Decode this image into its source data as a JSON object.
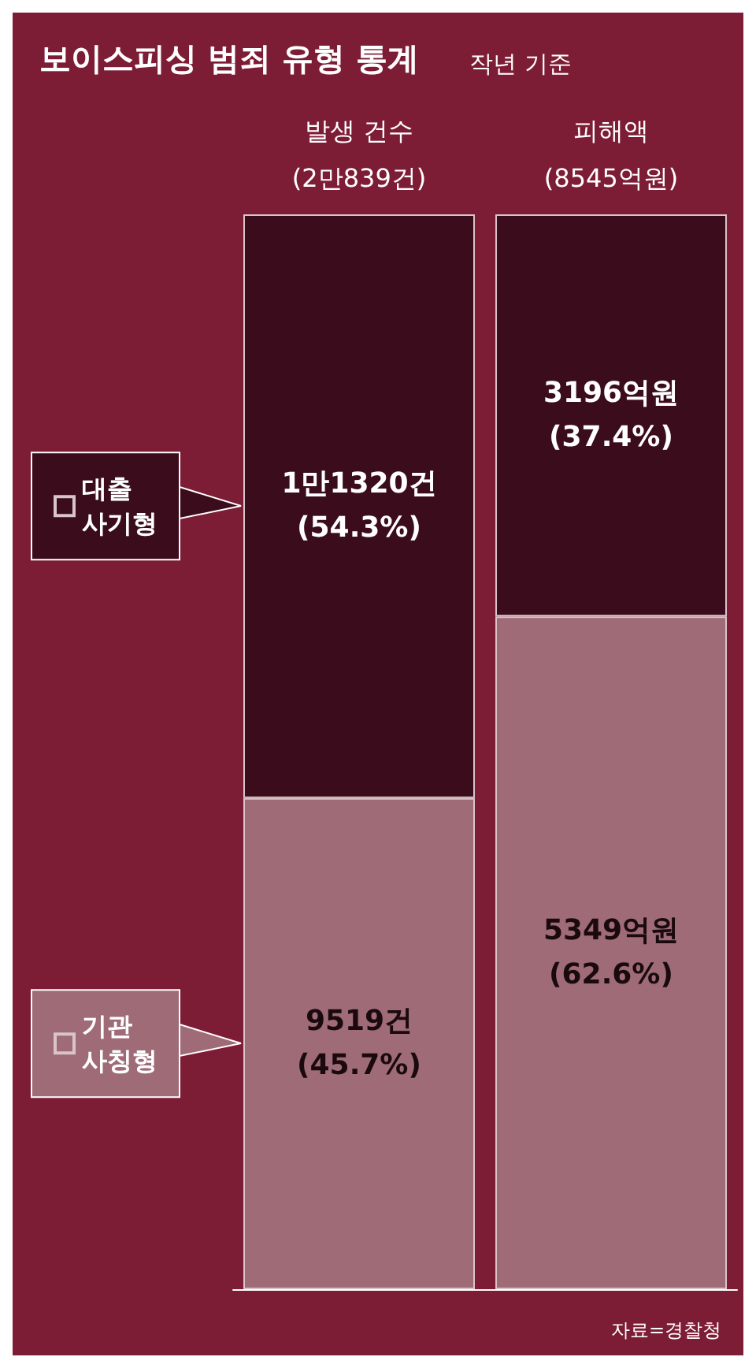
{
  "chart_data": {
    "type": "bar",
    "title": "보이스피싱 범죄 유형 통계",
    "subtitle": "작년 기준",
    "annotations": [
      "자료=경찰청"
    ],
    "categories": [
      "발생 건수\n(2만839건)",
      "피해액\n(8545억원)"
    ],
    "stacked": true,
    "ylim": [
      0,
      100
    ],
    "tick_labels": "x",
    "legend": "left",
    "series": [
      {
        "name": "기관\n사칭형",
        "color": "#9e6b77",
        "values": [
          45.7,
          62.6
        ],
        "value_labels": [
          "9519건\n(45.7%)",
          "5349억원\n(62.6%)"
        ]
      },
      {
        "name": "대출\n사기형",
        "color": "#3b0c1b",
        "values": [
          54.3,
          37.4
        ],
        "value_labels": [
          "1만1320건\n(54.3%)",
          "3196억원\n(37.4%)"
        ]
      }
    ]
  }
}
